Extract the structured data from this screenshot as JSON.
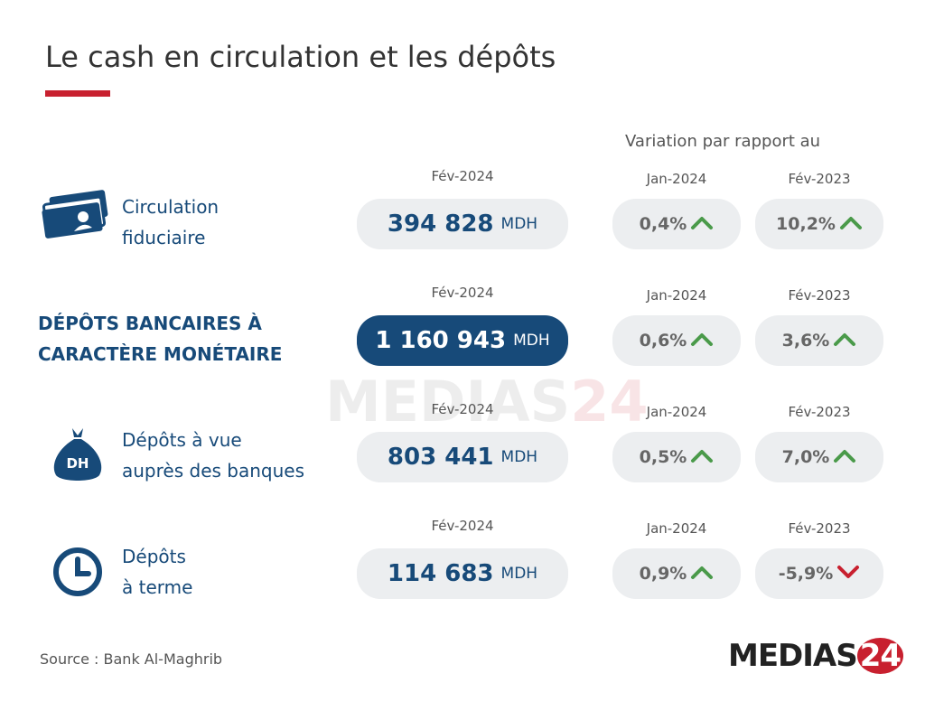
{
  "header": {
    "title": "Le cash en circulation et les dépôts",
    "variation_label": "Variation par rapport au"
  },
  "rows": [
    {
      "label": [
        "Circulation",
        "fiduciaire"
      ],
      "icon": "banknotes",
      "highlight": false,
      "period": "Fév-2024",
      "value": "394 828",
      "unit": "MDH",
      "changes": [
        {
          "period": "Jan-2024",
          "value": "0,4%",
          "direction": "up"
        },
        {
          "period": "Fév-2023",
          "value": "10,2%",
          "direction": "up"
        }
      ]
    },
    {
      "label": [
        "DÉPÔTS BANCAIRES À",
        "CARACTÈRE MONÉTAIRE"
      ],
      "icon": null,
      "highlight": true,
      "period": "Fév-2024",
      "value": "1 160 943",
      "unit": "MDH",
      "changes": [
        {
          "period": "Jan-2024",
          "value": "0,6%",
          "direction": "up"
        },
        {
          "period": "Fév-2023",
          "value": "3,6%",
          "direction": "up"
        }
      ]
    },
    {
      "label": [
        "Dépôts à vue",
        "auprès des banques"
      ],
      "icon": "moneybag",
      "icon_text": "DH",
      "highlight": false,
      "period": "Fév-2024",
      "value": "803 441",
      "unit": "MDH",
      "changes": [
        {
          "period": "Jan-2024",
          "value": "0,5%",
          "direction": "up"
        },
        {
          "period": "Fév-2023",
          "value": "7,0%",
          "direction": "up"
        }
      ]
    },
    {
      "label": [
        "Dépôts",
        "à terme"
      ],
      "icon": "clock",
      "highlight": false,
      "period": "Fév-2024",
      "value": "114 683",
      "unit": "MDH",
      "changes": [
        {
          "period": "Jan-2024",
          "value": "0,9%",
          "direction": "up"
        },
        {
          "period": "Fév-2023",
          "value": "-5,9%",
          "direction": "down"
        }
      ]
    }
  ],
  "footer": {
    "source": "Source : Bank Al-Maghrib",
    "logo": {
      "text": "MEDIAS",
      "number": "24"
    }
  }
}
